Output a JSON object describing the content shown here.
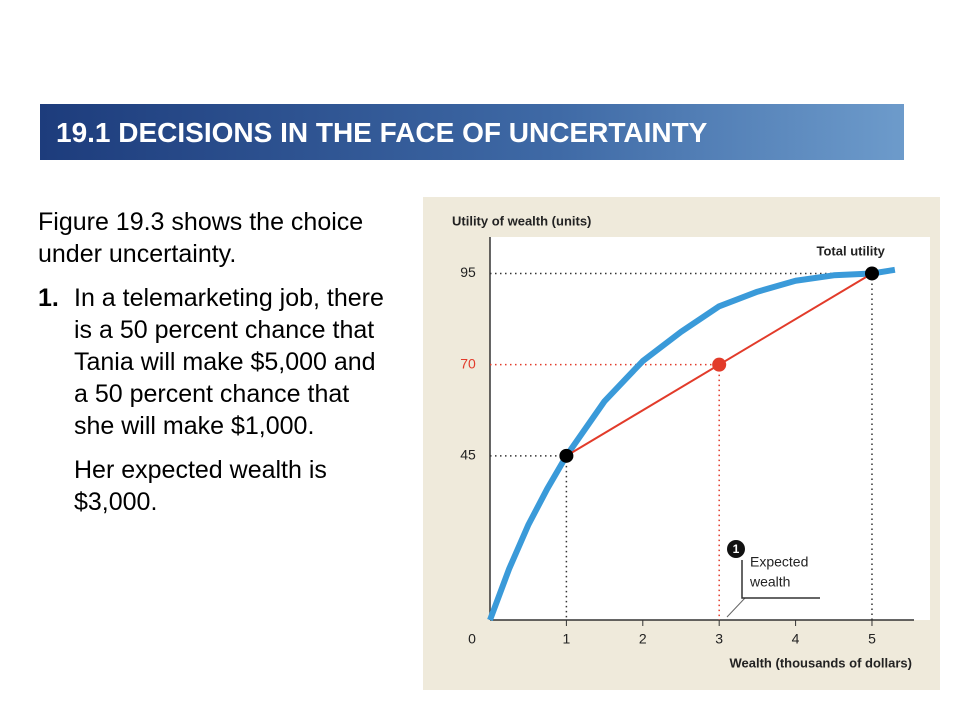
{
  "header": {
    "title": "19.1 DECISIONS IN THE FACE OF UNCERTAINTY"
  },
  "text": {
    "intro": "Figure 19.3 shows the choice under uncertainty.",
    "item_number": "1.",
    "item_text": "In a telemarketing job, there is a 50 percent chance that Tania will make $5,000 and a 50 percent chance that she will make $1,000.",
    "conclusion": "Her expected wealth is $3,000."
  },
  "chart_data": {
    "type": "line",
    "ylabel": "Utility of wealth (units)",
    "xlabel": "Wealth (thousands of dollars)",
    "x": [
      0,
      0.25,
      0.5,
      0.75,
      1,
      1.5,
      2,
      2.5,
      3,
      3.5,
      4,
      4.5,
      5,
      5.3
    ],
    "series": [
      {
        "name": "Total utility",
        "color": "#3a9ad9",
        "values": [
          0,
          14,
          26,
          36,
          45,
          60,
          71,
          79,
          86,
          90,
          93,
          94.5,
          95,
          96
        ]
      }
    ],
    "points": {
      "x": [
        1,
        3,
        5
      ],
      "values": [
        45,
        70,
        95
      ],
      "colors": [
        "#000000",
        "#e23b2a",
        "#000000"
      ]
    },
    "chord_color": "#e23b2a",
    "xlim": [
      0,
      5.55
    ],
    "ylim": [
      0,
      105
    ],
    "xticks": [
      0,
      1,
      2,
      3,
      4,
      5
    ],
    "yticks": [
      45,
      70,
      95
    ],
    "annotation": {
      "number": "1",
      "lines": [
        "Expected",
        "wealth"
      ]
    }
  }
}
